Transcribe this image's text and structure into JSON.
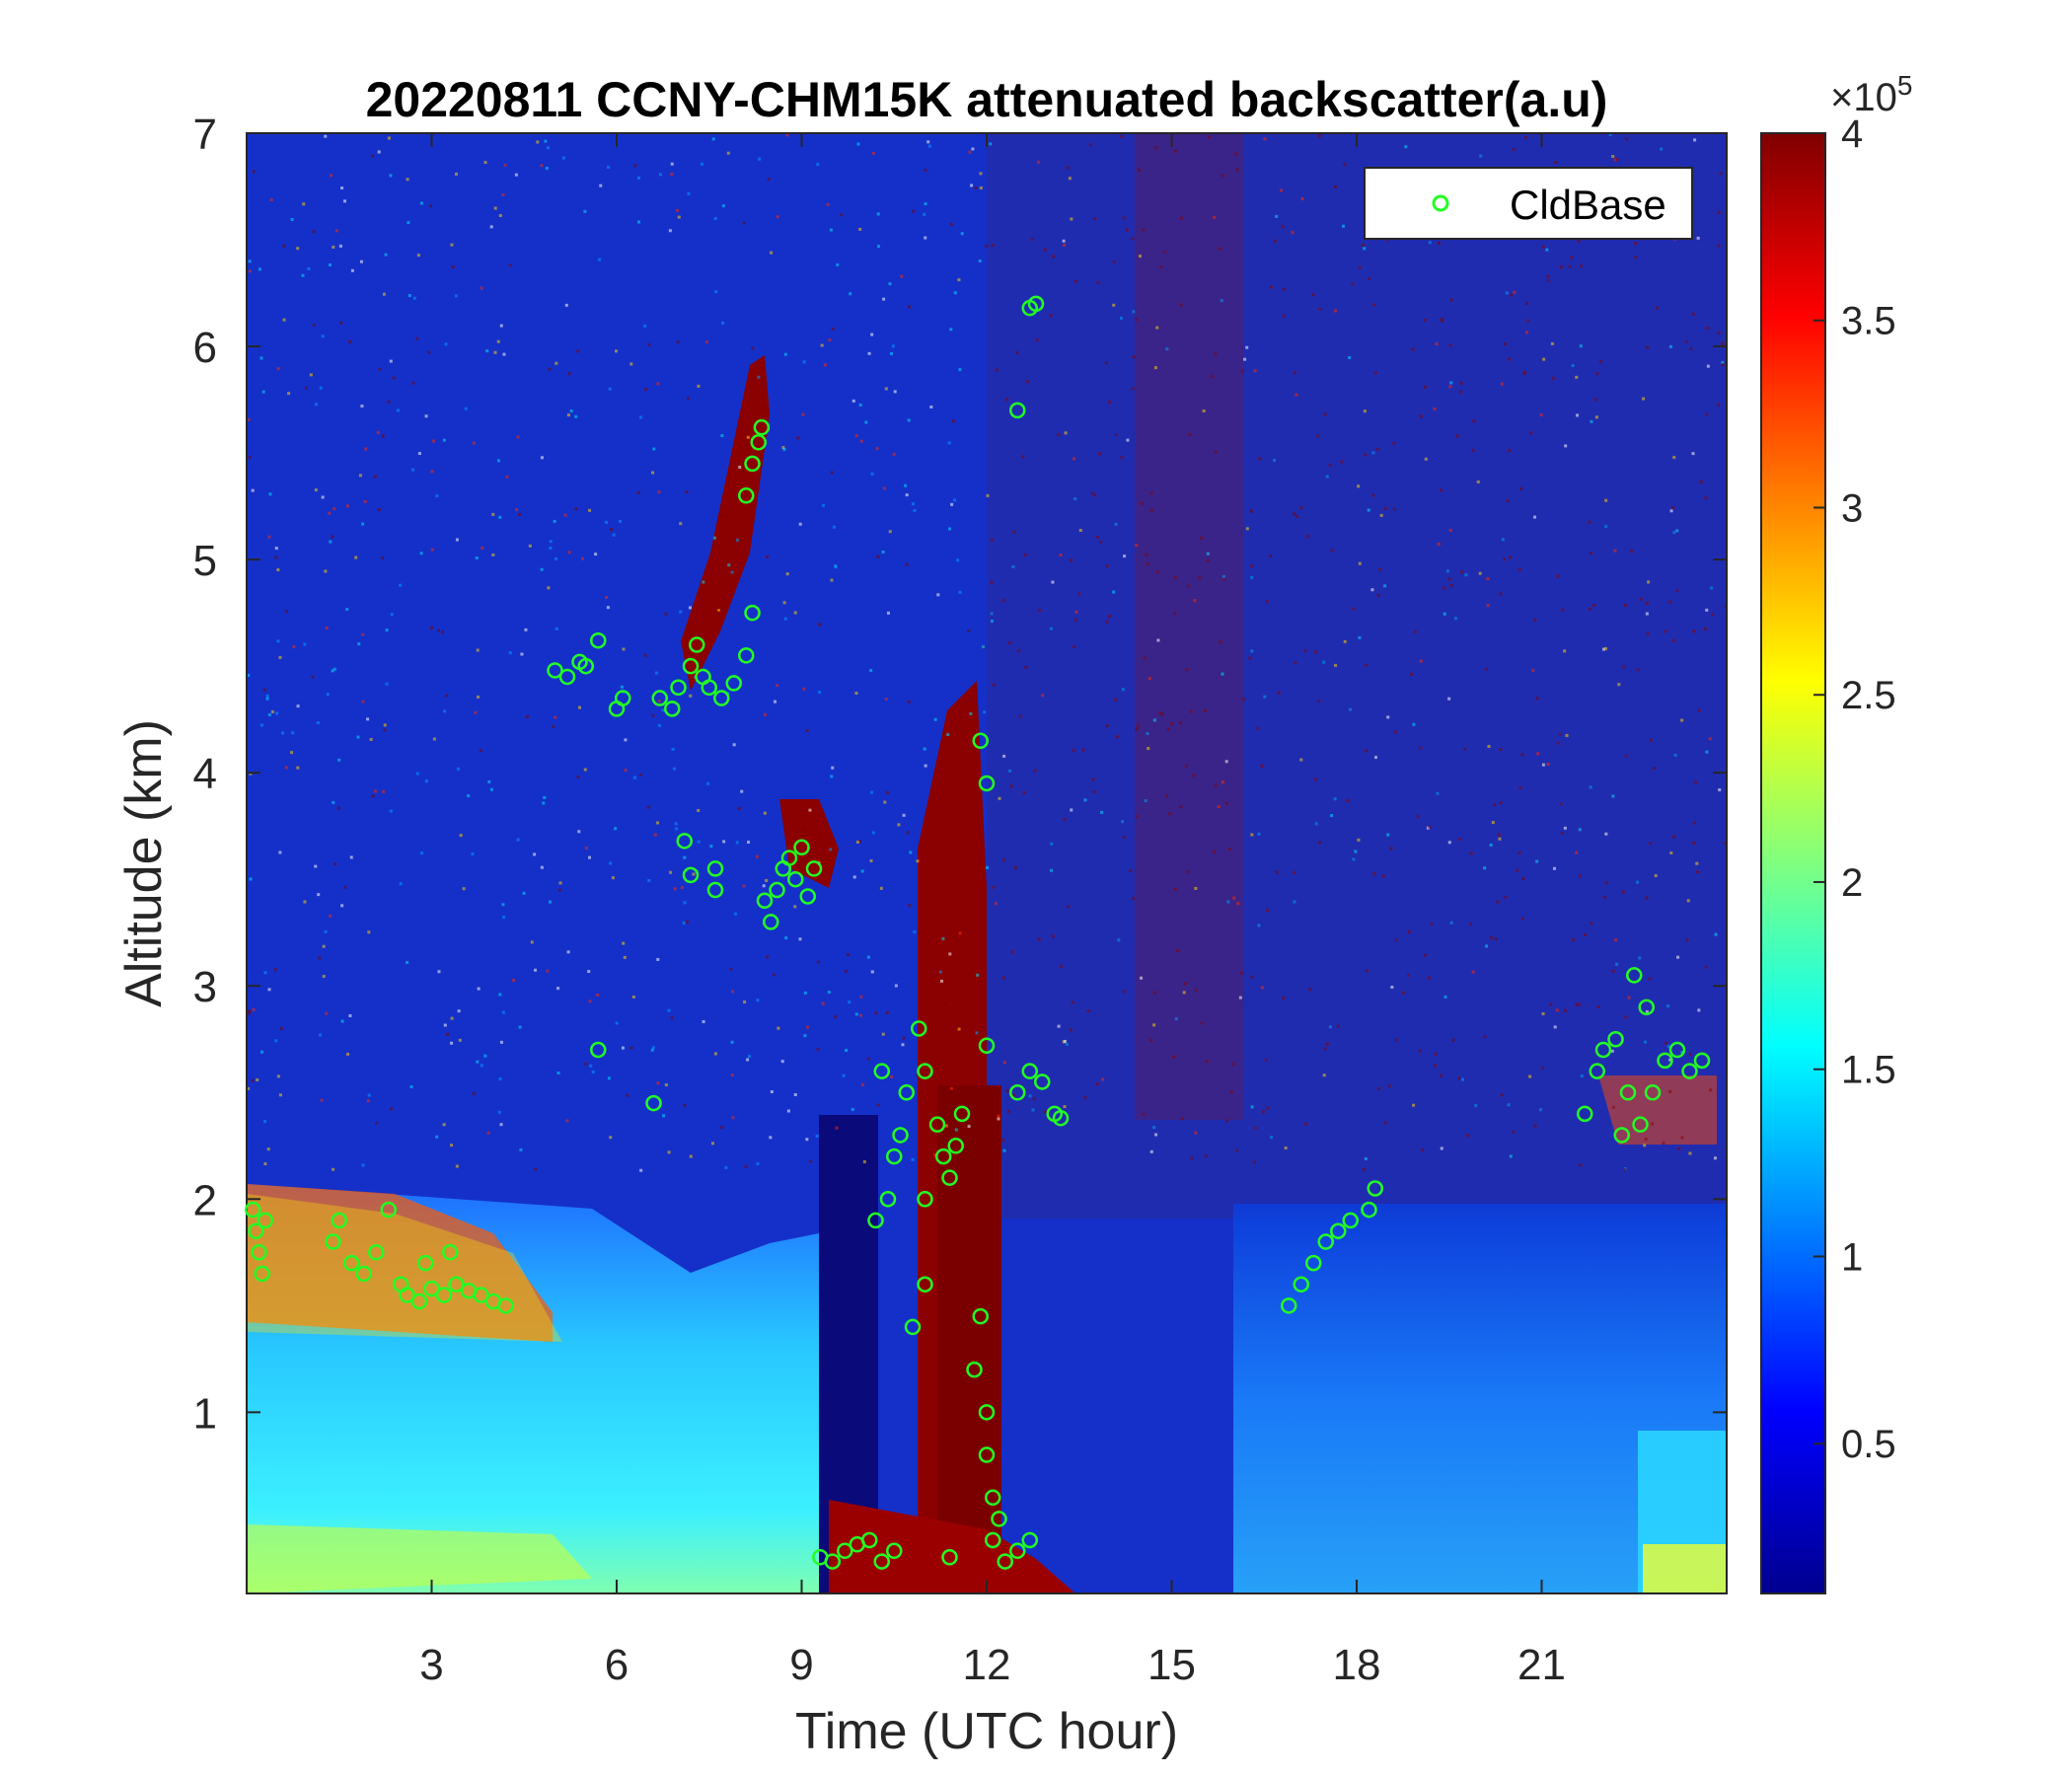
{
  "chart_data": {
    "type": "heatmap",
    "title": "20220811 CCNY-CHM15K attenuated backscatter(a.u)",
    "xlabel": "Time (UTC hour)",
    "ylabel": "Altitude (km)",
    "xlim": [
      0,
      24
    ],
    "ylim": [
      0.15,
      7
    ],
    "x_ticks": [
      3,
      6,
      9,
      12,
      15,
      18,
      21
    ],
    "y_ticks": [
      1,
      2,
      3,
      4,
      5,
      6,
      7
    ],
    "colormap": "jet",
    "colorbar": {
      "range": [
        0.1,
        4
      ],
      "ticks": [
        "0.5",
        "1",
        "1.5",
        "2",
        "2.5",
        "3",
        "3.5",
        "4"
      ],
      "tick_values": [
        0.5,
        1,
        1.5,
        2,
        2.5,
        3,
        3.5,
        4
      ],
      "exponent_label": "×10",
      "exponent": "5"
    },
    "legend": {
      "position": "top-right",
      "entries": [
        "CldBase"
      ],
      "marker": "circle",
      "color": "#22ff22"
    },
    "series": [
      {
        "name": "CldBase",
        "points": [
          [
            0.1,
            1.95
          ],
          [
            0.15,
            1.85
          ],
          [
            0.2,
            1.75
          ],
          [
            0.3,
            1.9
          ],
          [
            0.25,
            1.65
          ],
          [
            1.4,
            1.8
          ],
          [
            1.5,
            1.9
          ],
          [
            1.7,
            1.7
          ],
          [
            1.9,
            1.65
          ],
          [
            2.1,
            1.75
          ],
          [
            2.3,
            1.95
          ],
          [
            2.5,
            1.6
          ],
          [
            2.6,
            1.55
          ],
          [
            2.8,
            1.52
          ],
          [
            3.0,
            1.58
          ],
          [
            3.2,
            1.55
          ],
          [
            3.4,
            1.6
          ],
          [
            3.6,
            1.57
          ],
          [
            3.8,
            1.55
          ],
          [
            4.0,
            1.52
          ],
          [
            4.2,
            1.5
          ],
          [
            2.9,
            1.7
          ],
          [
            3.3,
            1.75
          ],
          [
            5.0,
            4.48
          ],
          [
            5.2,
            4.45
          ],
          [
            5.4,
            4.52
          ],
          [
            5.5,
            4.5
          ],
          [
            5.7,
            4.62
          ],
          [
            6.0,
            4.3
          ],
          [
            6.1,
            4.35
          ],
          [
            6.7,
            4.35
          ],
          [
            6.9,
            4.3
          ],
          [
            7.0,
            4.4
          ],
          [
            7.2,
            4.5
          ],
          [
            7.3,
            4.6
          ],
          [
            7.5,
            4.4
          ],
          [
            7.7,
            4.35
          ],
          [
            7.9,
            4.42
          ],
          [
            8.1,
            4.55
          ],
          [
            8.2,
            4.75
          ],
          [
            7.4,
            4.45
          ],
          [
            8.1,
            5.3
          ],
          [
            8.2,
            5.45
          ],
          [
            8.3,
            5.55
          ],
          [
            8.35,
            5.62
          ],
          [
            7.1,
            3.68
          ],
          [
            7.2,
            3.52
          ],
          [
            7.6,
            3.55
          ],
          [
            7.6,
            3.45
          ],
          [
            8.4,
            3.4
          ],
          [
            8.5,
            3.3
          ],
          [
            8.6,
            3.45
          ],
          [
            8.7,
            3.55
          ],
          [
            8.8,
            3.6
          ],
          [
            8.9,
            3.5
          ],
          [
            9.0,
            3.65
          ],
          [
            9.1,
            3.42
          ],
          [
            9.2,
            3.55
          ],
          [
            5.7,
            2.7
          ],
          [
            6.6,
            2.45
          ],
          [
            9.7,
            0.35
          ],
          [
            9.9,
            0.38
          ],
          [
            10.1,
            0.4
          ],
          [
            10.3,
            0.3
          ],
          [
            10.5,
            0.35
          ],
          [
            9.5,
            0.3
          ],
          [
            9.3,
            0.32
          ],
          [
            10.2,
            1.9
          ],
          [
            10.4,
            2.0
          ],
          [
            10.5,
            2.2
          ],
          [
            10.6,
            2.3
          ],
          [
            10.7,
            2.5
          ],
          [
            10.9,
            2.8
          ],
          [
            11.0,
            2.6
          ],
          [
            11.2,
            2.35
          ],
          [
            11.3,
            2.2
          ],
          [
            11.4,
            2.1
          ],
          [
            11.5,
            2.25
          ],
          [
            11.6,
            2.4
          ],
          [
            10.3,
            2.6
          ],
          [
            10.8,
            1.4
          ],
          [
            11.0,
            2.0
          ],
          [
            11.0,
            1.6
          ],
          [
            11.9,
            1.45
          ],
          [
            11.8,
            1.2
          ],
          [
            12.0,
            1.0
          ],
          [
            12.0,
            0.8
          ],
          [
            12.1,
            0.6
          ],
          [
            12.2,
            0.5
          ],
          [
            12.1,
            0.4
          ],
          [
            12.3,
            0.3
          ],
          [
            12.5,
            0.35
          ],
          [
            12.7,
            0.4
          ],
          [
            11.4,
            0.32
          ],
          [
            11.9,
            4.15
          ],
          [
            12.0,
            3.95
          ],
          [
            12.7,
            6.18
          ],
          [
            12.8,
            6.2
          ],
          [
            12.5,
            5.7
          ],
          [
            12.5,
            2.5
          ],
          [
            12.7,
            2.6
          ],
          [
            12.9,
            2.55
          ],
          [
            13.1,
            2.4
          ],
          [
            13.2,
            2.38
          ],
          [
            12.0,
            2.72
          ],
          [
            16.9,
            1.5
          ],
          [
            17.1,
            1.6
          ],
          [
            17.3,
            1.7
          ],
          [
            17.5,
            1.8
          ],
          [
            17.7,
            1.85
          ],
          [
            17.9,
            1.9
          ],
          [
            18.2,
            1.95
          ],
          [
            18.3,
            2.05
          ],
          [
            21.7,
            2.4
          ],
          [
            21.9,
            2.6
          ],
          [
            22.0,
            2.7
          ],
          [
            22.2,
            2.75
          ],
          [
            22.4,
            2.5
          ],
          [
            22.6,
            2.35
          ],
          [
            22.8,
            2.5
          ],
          [
            23.0,
            2.65
          ],
          [
            23.2,
            2.7
          ],
          [
            23.4,
            2.6
          ],
          [
            23.6,
            2.65
          ],
          [
            22.5,
            3.05
          ],
          [
            22.3,
            2.3
          ],
          [
            22.7,
            2.9
          ]
        ]
      }
    ]
  }
}
